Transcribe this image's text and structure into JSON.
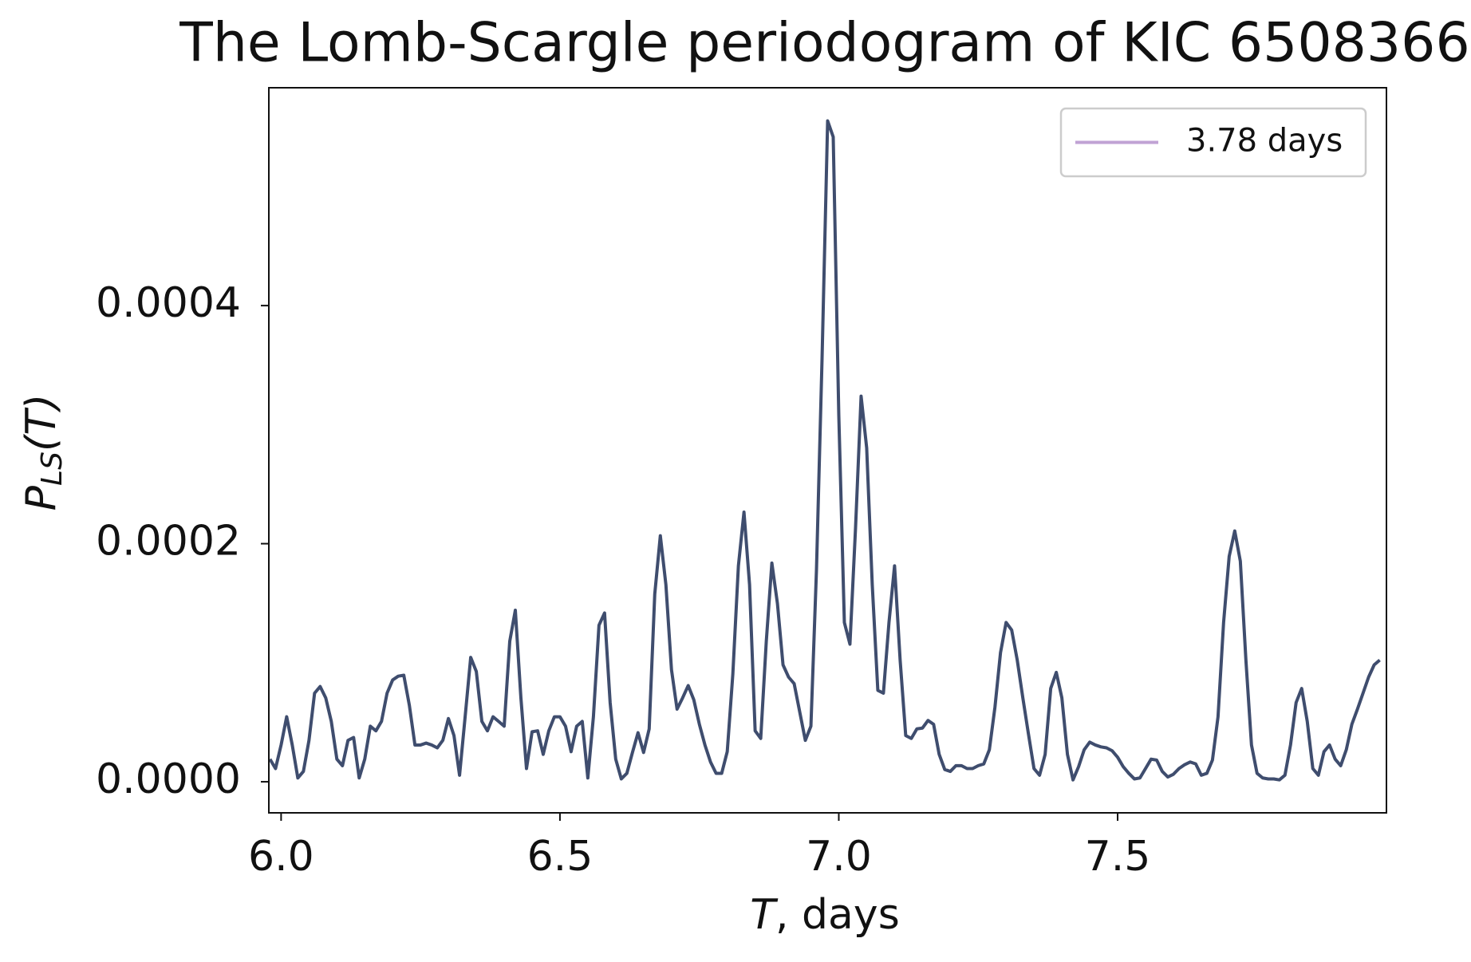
{
  "chart_data": {
    "type": "line",
    "title": "The Lomb-Scargle periodogram of KIC 6508366",
    "xlabel": [
      "T",
      ", days"
    ],
    "ylabel": [
      "P",
      "LS",
      "(T)"
    ],
    "xlim": [
      5.978,
      7.982
    ],
    "ylim": [
      -2.61e-05,
      0.000583
    ],
    "xticks": [
      {
        "value": 6,
        "label": "6.0"
      },
      6.5,
      {
        "value": 7,
        "label": "7.0"
      },
      7.5
    ],
    "yticks": [
      {
        "value": 0,
        "label": "0.0000"
      },
      0.0002,
      0.0004
    ],
    "legend": "upper right",
    "x": [
      5.98,
      5.99,
      6.0,
      6.01,
      6.02,
      6.03,
      6.04,
      6.05,
      6.06,
      6.07,
      6.08,
      6.09,
      6.1,
      6.11,
      6.12,
      6.13,
      6.14,
      6.15,
      6.16,
      6.17,
      6.18,
      6.19,
      6.2,
      6.21,
      6.22,
      6.23,
      6.24,
      6.25,
      6.26,
      6.27,
      6.28,
      6.29,
      6.3,
      6.31,
      6.32,
      6.33,
      6.34,
      6.35,
      6.36,
      6.37,
      6.38,
      6.39,
      6.4,
      6.41,
      6.42,
      6.43,
      6.44,
      6.45,
      6.46,
      6.47,
      6.48,
      6.49,
      6.5,
      6.51,
      6.52,
      6.53,
      6.54,
      6.55,
      6.56,
      6.57,
      6.58,
      6.59,
      6.6,
      6.61,
      6.62,
      6.63,
      6.64,
      6.65,
      6.66,
      6.67,
      6.68,
      6.69,
      6.7,
      6.71,
      6.72,
      6.73,
      6.74,
      6.75,
      6.76,
      6.77,
      6.78,
      6.79,
      6.8,
      6.81,
      6.82,
      6.83,
      6.84,
      6.85,
      6.86,
      6.87,
      6.88,
      6.89,
      6.9,
      6.91,
      6.92,
      6.93,
      6.94,
      6.95,
      6.96,
      6.97,
      6.98,
      6.99,
      7.0,
      7.01,
      7.02,
      7.03,
      7.04,
      7.05,
      7.06,
      7.07,
      7.08,
      7.09,
      7.1,
      7.11,
      7.12,
      7.13,
      7.14,
      7.15,
      7.16,
      7.17,
      7.18,
      7.19,
      7.2,
      7.21,
      7.22,
      7.23,
      7.24,
      7.25,
      7.26,
      7.27,
      7.28,
      7.29,
      7.3,
      7.31,
      7.32,
      7.33,
      7.34,
      7.35,
      7.36,
      7.37,
      7.38,
      7.39,
      7.4,
      7.41,
      7.42,
      7.43,
      7.44,
      7.45,
      7.46,
      7.47,
      7.48,
      7.49,
      7.5,
      7.51,
      7.52,
      7.53,
      7.54,
      7.55,
      7.56,
      7.57,
      7.58,
      7.59,
      7.6,
      7.61,
      7.62,
      7.63,
      7.64,
      7.65,
      7.66,
      7.67,
      7.68,
      7.69,
      7.7,
      7.71,
      7.72,
      7.73,
      7.74,
      7.75,
      7.76,
      7.77,
      7.78,
      7.79,
      7.8,
      7.81,
      7.82,
      7.83,
      7.84,
      7.85,
      7.86,
      7.87,
      7.88,
      7.89,
      7.9,
      7.91,
      7.92,
      7.93,
      7.94,
      7.95,
      7.96,
      7.97
    ],
    "series": [
      {
        "name": "3.78 days",
        "color": "#3f4d6e",
        "legend_color": "#c0a2d4",
        "values": [
          1.9e-05,
          1.11e-05,
          3.09e-05,
          5.46e-05,
          3.09e-05,
          3.2e-06,
          8.7e-06,
          3.48e-05,
          7.44e-05,
          8e-05,
          7.05e-05,
          5.07e-05,
          1.9e-05,
          1.35e-05,
          3.48e-05,
          3.72e-05,
          3.2e-06,
          1.9e-05,
          4.67e-05,
          4.28e-05,
          5.07e-05,
          7.44e-05,
          8.55e-05,
          8.87e-05,
          8.95e-05,
          6.42e-05,
          3.09e-05,
          3.09e-05,
          3.25e-05,
          3.09e-05,
          2.85e-05,
          3.48e-05,
          5.31e-05,
          3.88e-05,
          5.5e-06,
          5.46e-05,
          0.0001045,
          9.27e-05,
          5.07e-05,
          4.28e-05,
          5.46e-05,
          5.07e-05,
          4.67e-05,
          0.000118,
          0.0001441,
          7.05e-05,
          1.11e-05,
          4.2e-05,
          4.28e-05,
          2.3e-05,
          4.28e-05,
          5.46e-05,
          5.46e-05,
          4.67e-05,
          2.53e-05,
          4.67e-05,
          5.07e-05,
          3.2e-06,
          5.46e-05,
          0.0001315,
          0.0001418,
          6.65e-05,
          1.9e-05,
          2.4e-06,
          7.1e-06,
          2.46e-05,
          4.12e-05,
          2.46e-05,
          4.44e-05,
          0.0001576,
          0.0002067,
          0.0001655,
          9.42e-05,
          6.1e-05,
          7.05e-05,
          8.08e-05,
          6.89e-05,
          4.83e-05,
          3.09e-05,
          1.66e-05,
          7.1e-06,
          7.1e-06,
          2.53e-05,
          9.03e-05,
          0.0001814,
          0.0002265,
          0.0001655,
          4.28e-05,
          3.64e-05,
          0.000118,
          0.0001837,
          0.0001497,
          9.82e-05,
          8.79e-05,
          8.24e-05,
          5.86e-05,
          3.48e-05,
          4.67e-05,
          0.0001782,
          0.0003556,
          0.0005552,
          0.0005417,
          0.0003081,
          0.0001338,
          0.0001156,
          0.000213,
          0.0003239,
          0.0002804,
          0.0001655,
          7.68e-05,
          7.44e-05,
          0.0001338,
          0.0001814,
          0.0001022,
          3.88e-05,
          3.64e-05,
          4.44e-05,
          4.51e-05,
          5.15e-05,
          4.83e-05,
          2.3e-05,
          1.03e-05,
          8.7e-06,
          1.35e-05,
          1.35e-05,
          1.11e-05,
          1.11e-05,
          1.35e-05,
          1.5e-05,
          2.69e-05,
          6.26e-05,
          0.0001085,
          0.0001338,
          0.0001275,
          0.0001022,
          7.05e-05,
          4.04e-05,
          1.11e-05,
          5.5e-06,
          2.3e-05,
          7.84e-05,
          9.19e-05,
          7.05e-05,
          2.3e-05,
          1.6e-06,
          1.27e-05,
          2.69e-05,
          3.33e-05,
          3.09e-05,
          2.93e-05,
          2.85e-05,
          2.61e-05,
          2.06e-05,
          1.27e-05,
          7.1e-06,
          2.4e-06,
          3.2e-06,
          1.11e-05,
          1.9e-05,
          1.82e-05,
          8.7e-06,
          4e-06,
          6.3e-06,
          1.11e-05,
          1.43e-05,
          1.66e-05,
          1.5e-05,
          5.5e-06,
          7.1e-06,
          1.82e-05,
          5.46e-05,
          0.0001338,
          0.0001893,
          0.0002107,
          0.0001853,
          0.0001022,
          3.09e-05,
          7.1e-06,
          3.2e-06,
          2.4e-06,
          2.4e-06,
          1.6e-06,
          5.5e-06,
          3.09e-05,
          6.65e-05,
          7.84e-05,
          5.07e-05,
          1.11e-05,
          5.5e-06,
          2.53e-05,
          3.09e-05,
          1.9e-05,
          1.35e-05,
          2.69e-05,
          4.83e-05,
          6.1e-05,
          7.44e-05,
          8.79e-05,
          9.82e-05,
          0.0001022
        ]
      }
    ]
  }
}
